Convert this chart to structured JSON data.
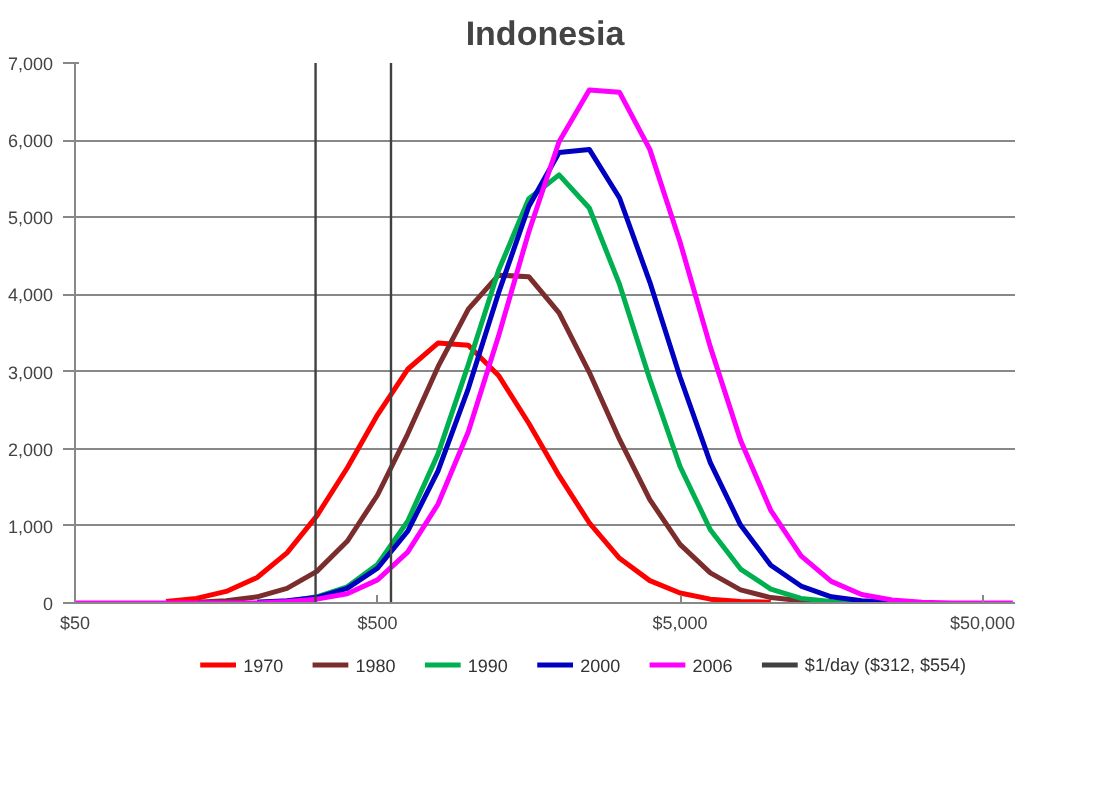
{
  "chart_data": {
    "type": "line",
    "title": "Indonesia",
    "x": [
      50,
      63,
      79,
      100,
      126,
      158,
      200,
      251,
      315,
      397,
      500,
      629,
      792,
      998,
      1256,
      1581,
      1991,
      2506,
      3155,
      3972,
      5000,
      6295,
      7924,
      9976,
      12559,
      15811,
      19905,
      25059,
      31548,
      39716,
      50000,
      62946
    ],
    "series": [
      {
        "name": "1970",
        "color": "#ff0000",
        "values": [
          null,
          null,
          null,
          20,
          60,
          150,
          330,
          650,
          1130,
          1750,
          2440,
          3030,
          3370,
          3340,
          2950,
          2330,
          1650,
          1040,
          580,
          290,
          130,
          50,
          20,
          10,
          null,
          null,
          null,
          null,
          null,
          null,
          null,
          null
        ]
      },
      {
        "name": "1980",
        "color": "#7b2c2c",
        "values": [
          null,
          null,
          null,
          null,
          10,
          30,
          80,
          190,
          410,
          800,
          1400,
          2190,
          3060,
          3810,
          4250,
          4230,
          3760,
          2990,
          2120,
          1340,
          760,
          390,
          170,
          70,
          30,
          10,
          null,
          null,
          null,
          null,
          null,
          null
        ]
      },
      {
        "name": "1990",
        "color": "#00b050",
        "values": [
          null,
          null,
          null,
          null,
          null,
          null,
          10,
          20,
          80,
          210,
          500,
          1060,
          1930,
          3090,
          4310,
          5240,
          5550,
          5120,
          4130,
          2900,
          1770,
          950,
          440,
          180,
          60,
          20,
          10,
          null,
          null,
          null,
          null,
          null
        ]
      },
      {
        "name": "2000",
        "color": "#0000c0",
        "values": [
          null,
          null,
          null,
          null,
          null,
          null,
          10,
          30,
          70,
          190,
          450,
          930,
          1710,
          2780,
          4020,
          5140,
          5840,
          5880,
          5250,
          4160,
          2930,
          1820,
          1010,
          490,
          220,
          80,
          30,
          10,
          null,
          null,
          null,
          null
        ]
      },
      {
        "name": "2006",
        "color": "#ff00ff",
        "values": [
          0,
          0,
          0,
          0,
          0,
          0,
          0,
          20,
          50,
          120,
          300,
          660,
          1280,
          2220,
          3460,
          4810,
          5980,
          6650,
          6620,
          5880,
          4680,
          3320,
          2110,
          1200,
          610,
          280,
          110,
          40,
          10,
          0,
          0,
          0
        ]
      }
    ],
    "ref_lines": [
      {
        "axis": "x",
        "value": 312,
        "label": "$1/day ($312, $554)",
        "color": "#404040"
      },
      {
        "axis": "x",
        "value": 554,
        "color": "#404040"
      }
    ],
    "log": "x",
    "xlim": [
      50,
      64000
    ],
    "xticks": [
      {
        "value": 50,
        "label": "$50"
      },
      {
        "value": 500,
        "label": "$500"
      },
      {
        "value": 5000,
        "label": "$5,000"
      },
      {
        "value": 50000,
        "label": "$50,000"
      }
    ],
    "ylim": [
      0,
      7000
    ],
    "yticks": [
      {
        "value": 0,
        "label": "0"
      },
      {
        "value": 1000,
        "label": "1,000"
      },
      {
        "value": 2000,
        "label": "2,000"
      },
      {
        "value": 3000,
        "label": "3,000"
      },
      {
        "value": 4000,
        "label": "4,000"
      },
      {
        "value": 5000,
        "label": "5,000"
      },
      {
        "value": 6000,
        "label": "6,000"
      },
      {
        "value": 7000,
        "label": "7,000"
      }
    ],
    "grid": "y",
    "legend": "bottom",
    "line_style": "solid"
  }
}
